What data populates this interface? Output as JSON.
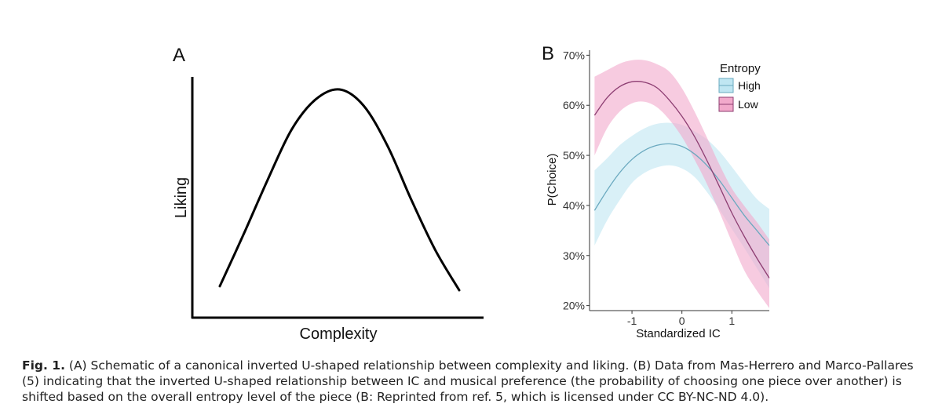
{
  "chart_data": [
    {
      "type": "line",
      "panel_label": "A",
      "xlabel": "Complexity",
      "ylabel": "Liking",
      "axes": {
        "ticks": false,
        "grid": false
      },
      "curve": {
        "shape": "inverted-U",
        "x": [
          0.0,
          0.1,
          0.2,
          0.3,
          0.4,
          0.5,
          0.6,
          0.7,
          0.8,
          0.9,
          1.0
        ],
        "y": [
          0.02,
          0.28,
          0.55,
          0.8,
          0.95,
          1.0,
          0.92,
          0.72,
          0.45,
          0.2,
          0.0
        ]
      }
    },
    {
      "type": "line",
      "panel_label": "B",
      "xlabel": "Standardized IC",
      "ylabel": "P(Choice)",
      "xticks": [
        -1,
        0,
        1
      ],
      "xtick_labels": [
        "-1",
        "0",
        "1"
      ],
      "yticks": [
        20,
        30,
        40,
        50,
        60,
        70
      ],
      "ytick_labels": [
        "20%",
        "30%",
        "40%",
        "50%",
        "60%",
        "70%"
      ],
      "xlim": [
        -1.85,
        1.75
      ],
      "ylim": [
        19,
        71
      ],
      "grid": false,
      "legend": {
        "title": "Entropy",
        "position": "top-right"
      },
      "series": [
        {
          "name": "High",
          "color": "#6aa9bf",
          "band_color": "#bfe6f2",
          "x": [
            -1.75,
            -1.5,
            -1.25,
            -1.0,
            -0.75,
            -0.5,
            -0.25,
            0.0,
            0.25,
            0.5,
            0.75,
            1.0,
            1.25,
            1.5,
            1.75
          ],
          "y": [
            39,
            43,
            46.5,
            49.2,
            51,
            52,
            52.3,
            51.8,
            50.3,
            48,
            45,
            41.5,
            38,
            35,
            32
          ],
          "lower": [
            32,
            37,
            41,
            44.5,
            46.5,
            47.6,
            48,
            47.4,
            45.7,
            42.7,
            39.2,
            35.3,
            31.5,
            27.5,
            23.5
          ],
          "upper": [
            47,
            49.4,
            52,
            53.9,
            55.4,
            56.3,
            56.5,
            56.1,
            54.8,
            53.2,
            50.8,
            47.7,
            44.4,
            41.3,
            39.3
          ]
        },
        {
          "name": "Low",
          "color": "#8d3e72",
          "band_color": "#f2a9cb",
          "x": [
            -1.75,
            -1.5,
            -1.25,
            -1.0,
            -0.75,
            -0.5,
            -0.25,
            0.0,
            0.25,
            0.5,
            0.75,
            1.0,
            1.25,
            1.5,
            1.75
          ],
          "y": [
            58,
            61.5,
            63.7,
            64.7,
            64.6,
            63.5,
            61,
            57.8,
            53.8,
            49,
            43.8,
            38.5,
            33.8,
            29.5,
            25.5
          ],
          "lower": [
            50,
            55.4,
            58.7,
            60.4,
            60.7,
            59.6,
            57.1,
            53.7,
            49.2,
            44.3,
            38.7,
            32.7,
            27,
            23,
            19.5
          ],
          "upper": [
            65.7,
            67,
            68.3,
            69,
            69,
            68.2,
            66.7,
            63.4,
            58.8,
            53.6,
            48.2,
            43.4,
            39.9,
            36.7,
            33.2
          ]
        }
      ]
    }
  ],
  "caption": {
    "label": "Fig. 1.",
    "text": " (A) Schematic of a canonical inverted U-shaped relationship between complexity and liking. (B) Data from Mas-Herrero and Marco-Pallares (5) indicating that the inverted U-shaped relationship between IC and musical preference (the probability of choosing one piece over another) is shifted based on the overall entropy level of the piece (B: Reprinted from ref. 5, which is licensed under CC BY-NC-ND 4.0)."
  }
}
